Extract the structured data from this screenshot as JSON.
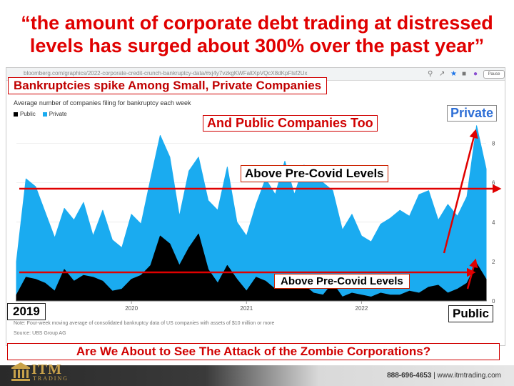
{
  "headline": {
    "line1": "“the amount of corporate debt trading at distressed",
    "line2": "levels has surged about 300% over the past year”"
  },
  "browser": {
    "url": "bloomberg.com/graphics/2022-corporate-credit-crunch-bankruptcy-data/#xj4y7vzkgKWFaltXpVQcX8dKpFlsf2Ux"
  },
  "chart_data": {
    "type": "area",
    "subtitle": "Average number of companies filing for bankruptcy each week",
    "legend": [
      "Public",
      "Private"
    ],
    "x_tick_labels": [
      "2020",
      "2021",
      "2022"
    ],
    "y_tick_labels": [
      "0",
      "2",
      "4",
      "6",
      "8"
    ],
    "ylim": [
      0,
      9
    ],
    "x_range": [
      "2019-01",
      "2023-02"
    ],
    "series": [
      {
        "name": "Private",
        "color": "#1aabf0",
        "x": [
          "2019-01",
          "2019-02",
          "2019-03",
          "2019-04",
          "2019-05",
          "2019-06",
          "2019-07",
          "2019-08",
          "2019-09",
          "2019-10",
          "2019-11",
          "2019-12",
          "2020-01",
          "2020-02",
          "2020-03",
          "2020-04",
          "2020-05",
          "2020-06",
          "2020-07",
          "2020-08",
          "2020-09",
          "2020-10",
          "2020-11",
          "2020-12",
          "2021-01",
          "2021-02",
          "2021-03",
          "2021-04",
          "2021-05",
          "2021-06",
          "2021-07",
          "2021-08",
          "2021-09",
          "2021-10",
          "2021-11",
          "2021-12",
          "2022-01",
          "2022-02",
          "2022-03",
          "2022-04",
          "2022-05",
          "2022-06",
          "2022-07",
          "2022-08",
          "2022-09",
          "2022-10",
          "2022-11",
          "2022-12",
          "2023-01",
          "2023-02"
        ],
        "values": [
          2.0,
          6.2,
          5.8,
          4.5,
          3.2,
          4.7,
          4.1,
          5.0,
          3.3,
          4.6,
          3.1,
          2.7,
          4.4,
          3.9,
          6.2,
          8.4,
          7.3,
          4.3,
          6.6,
          7.3,
          5.1,
          4.6,
          6.8,
          4.0,
          3.3,
          4.9,
          6.2,
          5.4,
          7.1,
          5.4,
          6.9,
          6.3,
          6.0,
          5.6,
          3.6,
          4.4,
          3.3,
          3.0,
          3.9,
          4.2,
          4.6,
          4.3,
          5.4,
          5.6,
          4.1,
          4.9,
          4.3,
          5.3,
          8.9,
          6.7
        ]
      },
      {
        "name": "Public",
        "color": "#000000",
        "x": [
          "2019-01",
          "2019-02",
          "2019-03",
          "2019-04",
          "2019-05",
          "2019-06",
          "2019-07",
          "2019-08",
          "2019-09",
          "2019-10",
          "2019-11",
          "2019-12",
          "2020-01",
          "2020-02",
          "2020-03",
          "2020-04",
          "2020-05",
          "2020-06",
          "2020-07",
          "2020-08",
          "2020-09",
          "2020-10",
          "2020-11",
          "2020-12",
          "2021-01",
          "2021-02",
          "2021-03",
          "2021-04",
          "2021-05",
          "2021-06",
          "2021-07",
          "2021-08",
          "2021-09",
          "2021-10",
          "2021-11",
          "2021-12",
          "2022-01",
          "2022-02",
          "2022-03",
          "2022-04",
          "2022-05",
          "2022-06",
          "2022-07",
          "2022-08",
          "2022-09",
          "2022-10",
          "2022-11",
          "2022-12",
          "2023-01",
          "2023-02"
        ],
        "values": [
          0.3,
          1.2,
          1.1,
          0.9,
          0.5,
          1.6,
          1.0,
          1.3,
          1.2,
          1.0,
          0.5,
          0.6,
          1.1,
          1.3,
          1.8,
          3.3,
          2.9,
          1.8,
          2.7,
          3.4,
          1.6,
          0.9,
          1.8,
          1.1,
          0.5,
          1.2,
          1.0,
          0.6,
          0.7,
          1.0,
          0.8,
          0.4,
          0.3,
          0.9,
          0.2,
          0.4,
          0.3,
          0.2,
          0.4,
          0.3,
          0.3,
          0.5,
          0.4,
          0.7,
          0.8,
          0.4,
          0.6,
          0.9,
          1.9,
          1.1
        ]
      }
    ]
  },
  "callouts": {
    "bankruptcies": "Bankruptcies spike Among Small, Private Companies",
    "public_too": "And Public Companies Too",
    "above_top": "Above Pre-Covid Levels",
    "above_bottom": "Above Pre-Covid Levels",
    "private": "Private",
    "public": "Public",
    "year_2019": "2019",
    "zombie": "Are We About to See The Attack of the Zombie Corporations?"
  },
  "chart_note": "Note: Four-week moving average of consolidated bankruptcy data of US companies with assets of $10 million or more",
  "chart_source": "Source: UBS Group AG",
  "browser_reader_label": "Pause",
  "footer": {
    "logo_main": "ITM",
    "logo_sub": "TRADING",
    "phone": "888-696-4653",
    "separator": "|",
    "website": "www.itmtrading.com"
  },
  "colors": {
    "headline": "#e00000",
    "annotation_line": "#e00000",
    "private_series": "#1aabf0",
    "public_series": "#000000",
    "private_label": "#2e6fd6",
    "logo_gold": "#c9a24a"
  }
}
